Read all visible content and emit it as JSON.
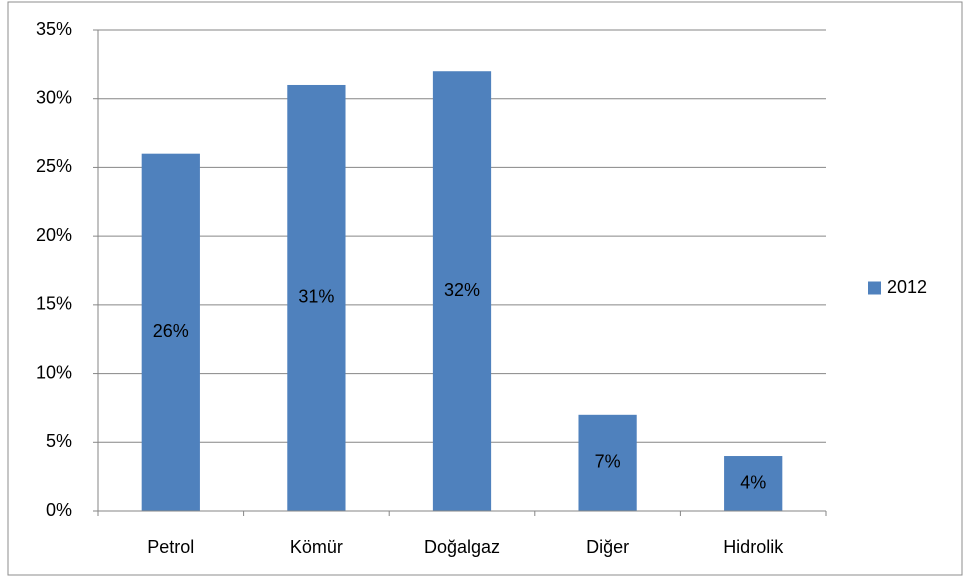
{
  "chart_data": {
    "type": "bar",
    "categories": [
      "Petrol",
      "Kömür",
      "Doğalgaz",
      "Diğer",
      "Hidrolik"
    ],
    "series": [
      {
        "name": "2012",
        "color": "#4f81bd",
        "values": [
          26,
          31,
          32,
          7,
          4
        ],
        "value_labels": [
          "26%",
          "31%",
          "32%",
          "7%",
          "4%"
        ]
      }
    ],
    "ylim": [
      0,
      35
    ],
    "yticks": [
      {
        "value": 0,
        "label": "0%"
      },
      {
        "value": 5,
        "label": "5%"
      },
      {
        "value": 10,
        "label": "10%"
      },
      {
        "value": 15,
        "label": "15%"
      },
      {
        "value": 20,
        "label": "20%"
      },
      {
        "value": 25,
        "label": "25%"
      },
      {
        "value": 30,
        "label": "30%"
      },
      {
        "value": 35,
        "label": "35%"
      }
    ],
    "grid": true,
    "legend": "right"
  }
}
